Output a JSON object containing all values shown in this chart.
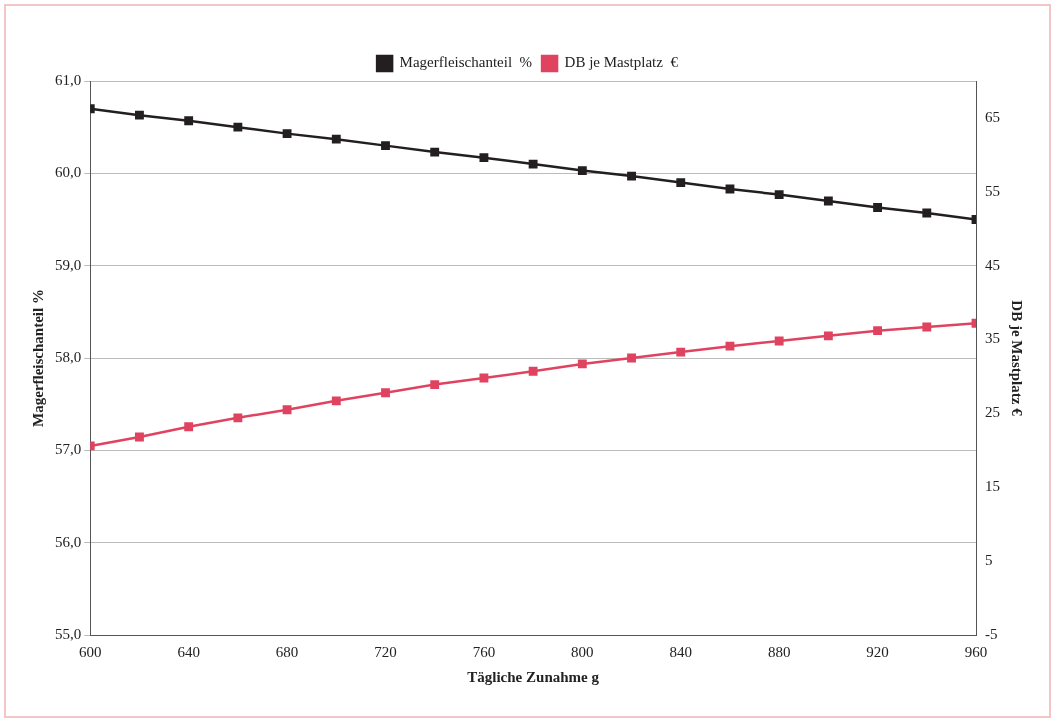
{
  "chart_data": {
    "type": "line",
    "xlabel": "Tägliche Zunahme g",
    "ylabel": "Magerfleischanteil %",
    "y2label": "DB je Mastplatz €",
    "x": [
      600,
      620,
      640,
      660,
      680,
      700,
      720,
      740,
      760,
      780,
      800,
      820,
      840,
      860,
      880,
      900,
      920,
      940,
      960
    ],
    "series": [
      {
        "name": "Magerfleischanteil  %",
        "color": "#231f20",
        "values": [
          60.7,
          60.63,
          60.57,
          60.5,
          60.43,
          60.37,
          60.3,
          60.23,
          60.17,
          60.1,
          60.03,
          59.97,
          59.9,
          59.83,
          59.77,
          59.7,
          59.63,
          59.57,
          59.5
        ]
      },
      {
        "name": "DB je Mastplatz  €",
        "color": "#e0435f",
        "axis": "y2",
        "values": [
          20.6,
          21.8,
          23.2,
          24.4,
          25.5,
          26.7,
          27.8,
          28.9,
          29.8,
          30.7,
          31.7,
          32.5,
          33.3,
          34.1,
          34.8,
          35.5,
          36.2,
          36.7,
          37.2
        ]
      }
    ],
    "xlim": [
      600,
      960
    ],
    "xticks": [
      600,
      640,
      680,
      720,
      760,
      800,
      840,
      880,
      920,
      960
    ],
    "ylim": [
      55,
      61
    ],
    "yticks": [
      {
        "value": 55,
        "label": "55,0"
      },
      {
        "value": 56,
        "label": "56,0"
      },
      {
        "value": 57,
        "label": "57,0"
      },
      {
        "value": 58,
        "label": "58,0"
      },
      {
        "value": 59,
        "label": "59,0"
      },
      {
        "value": 60,
        "label": "60,0"
      },
      {
        "value": 61,
        "label": "61,0"
      }
    ],
    "y2lim": [
      -5,
      70
    ],
    "y2ticks": [
      -5,
      5,
      15,
      25,
      35,
      45,
      55,
      65
    ],
    "grid": "y",
    "legend": "top",
    "marker": "square",
    "line_style": "solid"
  }
}
